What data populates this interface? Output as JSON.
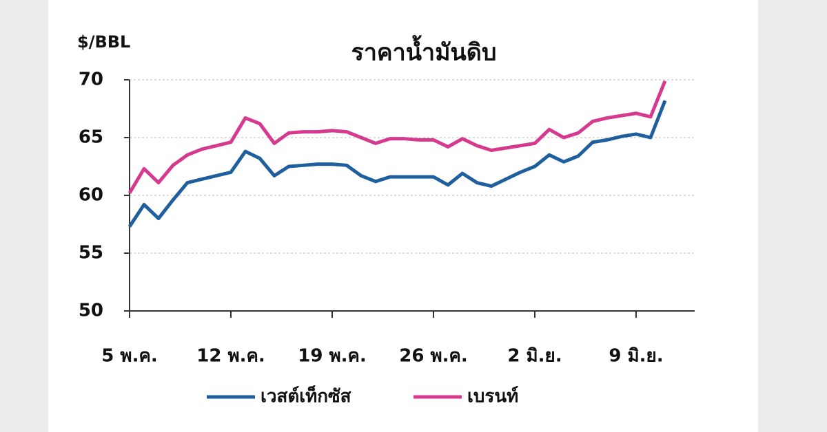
{
  "chart_data": {
    "type": "line",
    "title": "ราคาน้ำมันดิบ",
    "y_label": "$/BBL",
    "categories": [
      "5 พ.ค.",
      null,
      null,
      null,
      null,
      null,
      null,
      "12 พ.ค.",
      null,
      null,
      null,
      null,
      null,
      null,
      "19 พ.ค.",
      null,
      null,
      null,
      null,
      null,
      null,
      "26 พ.ค.",
      null,
      null,
      null,
      null,
      null,
      null,
      "2 มิ.ย.",
      null,
      null,
      null,
      null,
      null,
      null,
      "9 มิ.ย.",
      null,
      null
    ],
    "series": [
      {
        "name": "เวสต์เท็กซัส",
        "color": "#1f5f9e",
        "values": [
          57.3,
          59.2,
          58.0,
          59.6,
          61.1,
          61.4,
          61.7,
          62.0,
          63.8,
          63.2,
          61.7,
          62.5,
          62.6,
          62.7,
          62.7,
          62.6,
          61.7,
          61.2,
          61.6,
          61.6,
          61.6,
          61.6,
          60.9,
          61.9,
          61.1,
          60.8,
          61.4,
          62.0,
          62.5,
          63.5,
          62.9,
          63.4,
          64.6,
          64.8,
          65.1,
          65.3,
          65.0,
          68.2
        ]
      },
      {
        "name": "เบรนท์",
        "color": "#d63a8f",
        "values": [
          60.2,
          62.3,
          61.1,
          62.6,
          63.5,
          64.0,
          64.3,
          64.6,
          66.7,
          66.2,
          64.5,
          65.4,
          65.5,
          65.5,
          65.6,
          65.5,
          65.0,
          64.5,
          64.9,
          64.9,
          64.8,
          64.8,
          64.2,
          64.9,
          64.3,
          63.9,
          64.1,
          64.3,
          64.5,
          65.7,
          65.0,
          65.4,
          66.4,
          66.7,
          66.9,
          67.1,
          66.8,
          69.9
        ]
      }
    ],
    "ylim": [
      50,
      70
    ],
    "yticks": [
      50,
      55,
      60,
      65,
      70
    ],
    "grid": true
  }
}
